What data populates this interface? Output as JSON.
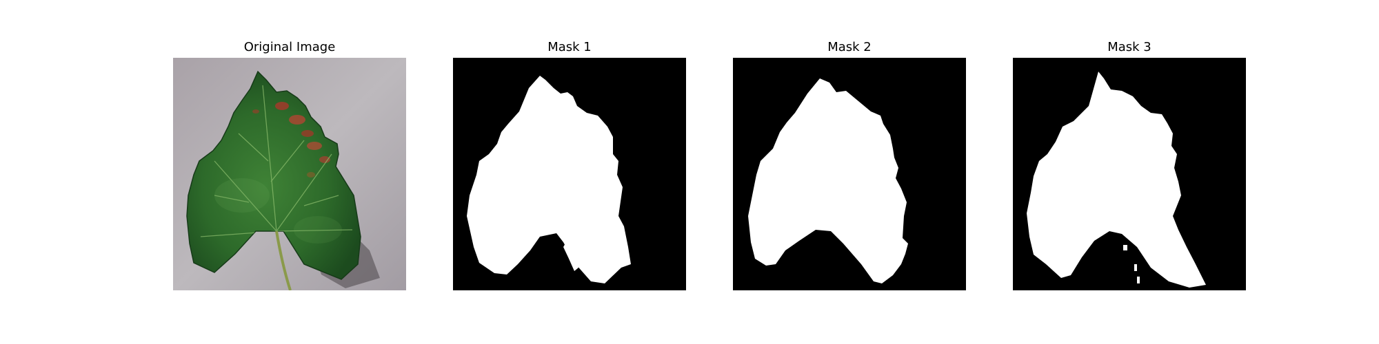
{
  "figure": {
    "panels": [
      {
        "title": "Original Image"
      },
      {
        "title": "Mask 1"
      },
      {
        "title": "Mask 2"
      },
      {
        "title": "Mask 3"
      }
    ]
  },
  "colors": {
    "background": "#ffffff",
    "mask_foreground": "#ffffff",
    "mask_background": "#000000",
    "leaf_green": "#2f6b2c",
    "leaf_dark": "#1f4a1f",
    "lesion_red": "#a23a2a",
    "backdrop_gray": "#b4b0b4"
  }
}
